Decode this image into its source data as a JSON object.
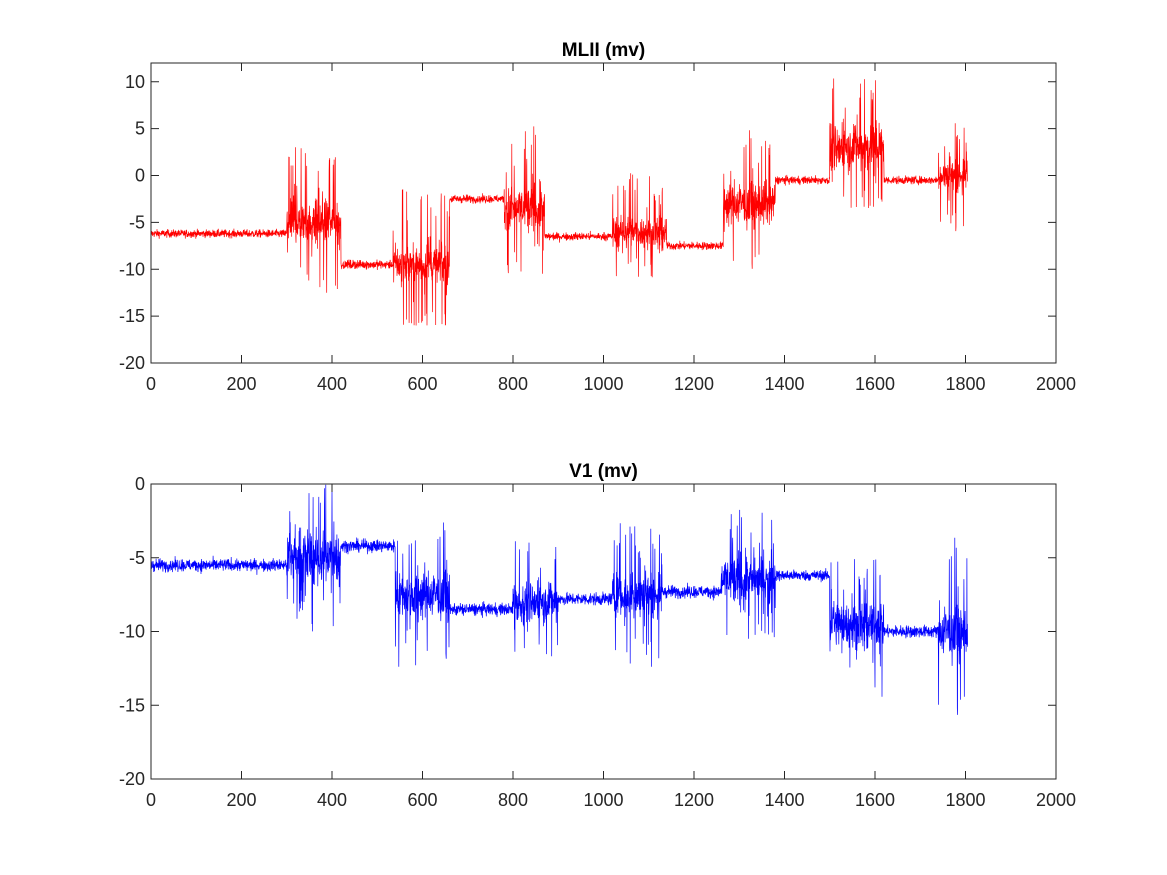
{
  "chart_data": [
    {
      "type": "line",
      "title": "MLII (mv)",
      "xlabel": "",
      "ylabel": "",
      "xlim": [
        0,
        2000
      ],
      "ylim": [
        -20,
        12
      ],
      "xticks": [
        "0",
        "200",
        "400",
        "600",
        "800",
        "1000",
        "1200",
        "1400",
        "1600",
        "1800",
        "2000"
      ],
      "yticks": [
        "-20",
        "-15",
        "-10",
        "-5",
        "0",
        "5",
        "10"
      ],
      "grid": false,
      "color": "#ff0000",
      "series": [
        {
          "segments": [
            {
              "x0": 0,
              "x1": 300,
              "center": -6.2,
              "noise": 0.8,
              "low": -8.0,
              "high": -4.5
            },
            {
              "x0": 300,
              "x1": 420,
              "center": -5.0,
              "noise": 4.0,
              "low": -12.5,
              "high": 4.2
            },
            {
              "x0": 420,
              "x1": 535,
              "center": -9.5,
              "noise": 0.9,
              "low": -11.5,
              "high": -6.5
            },
            {
              "x0": 535,
              "x1": 660,
              "center": -9.5,
              "noise": 3.5,
              "low": -16.0,
              "high": 0.5
            },
            {
              "x0": 660,
              "x1": 780,
              "center": -2.5,
              "noise": 0.8,
              "low": -4.0,
              "high": -1.0
            },
            {
              "x0": 780,
              "x1": 870,
              "center": -3.5,
              "noise": 4.0,
              "low": -10.5,
              "high": 7.0
            },
            {
              "x0": 870,
              "x1": 1020,
              "center": -6.5,
              "noise": 0.8,
              "low": -8.5,
              "high": -5.0
            },
            {
              "x0": 1020,
              "x1": 1140,
              "center": -6.0,
              "noise": 3.0,
              "low": -11.0,
              "high": 1.5
            },
            {
              "x0": 1140,
              "x1": 1265,
              "center": -7.5,
              "noise": 0.8,
              "low": -9.0,
              "high": -5.5
            },
            {
              "x0": 1265,
              "x1": 1380,
              "center": -3.0,
              "noise": 4.0,
              "low": -10.0,
              "high": 6.0
            },
            {
              "x0": 1380,
              "x1": 1500,
              "center": -0.5,
              "noise": 0.8,
              "low": -2.0,
              "high": 1.0
            },
            {
              "x0": 1500,
              "x1": 1620,
              "center": 3.0,
              "noise": 4.5,
              "low": -3.5,
              "high": 12.0
            },
            {
              "x0": 1620,
              "x1": 1740,
              "center": -0.5,
              "noise": 0.8,
              "low": -2.0,
              "high": 1.5
            },
            {
              "x0": 1740,
              "x1": 1805,
              "center": 0.0,
              "noise": 3.0,
              "low": -6.0,
              "high": 6.5
            }
          ]
        }
      ]
    },
    {
      "type": "line",
      "title": "V1 (mv)",
      "xlabel": "",
      "ylabel": "",
      "xlim": [
        0,
        2000
      ],
      "ylim": [
        -20,
        0
      ],
      "xticks": [
        "0",
        "200",
        "400",
        "600",
        "800",
        "1000",
        "1200",
        "1400",
        "1600",
        "1800",
        "2000"
      ],
      "yticks": [
        "-20",
        "-15",
        "-10",
        "-5",
        "0"
      ],
      "grid": false,
      "color": "#0000ff",
      "series": [
        {
          "segments": [
            {
              "x0": 0,
              "x1": 300,
              "center": -5.5,
              "noise": 0.8,
              "low": -7.0,
              "high": -3.5
            },
            {
              "x0": 300,
              "x1": 420,
              "center": -5.0,
              "noise": 3.5,
              "low": -10.5,
              "high": 0.0
            },
            {
              "x0": 420,
              "x1": 540,
              "center": -4.2,
              "noise": 0.8,
              "low": -6.0,
              "high": -0.5
            },
            {
              "x0": 540,
              "x1": 660,
              "center": -7.5,
              "noise": 2.8,
              "low": -12.5,
              "high": -2.5
            },
            {
              "x0": 660,
              "x1": 800,
              "center": -8.5,
              "noise": 0.8,
              "low": -10.5,
              "high": -6.5
            },
            {
              "x0": 800,
              "x1": 900,
              "center": -8.0,
              "noise": 2.5,
              "low": -12.0,
              "high": -3.5
            },
            {
              "x0": 900,
              "x1": 1020,
              "center": -7.8,
              "noise": 0.8,
              "low": -9.5,
              "high": -6.0
            },
            {
              "x0": 1020,
              "x1": 1130,
              "center": -7.5,
              "noise": 2.6,
              "low": -12.5,
              "high": -2.5
            },
            {
              "x0": 1130,
              "x1": 1260,
              "center": -7.3,
              "noise": 0.8,
              "low": -9.0,
              "high": -5.5
            },
            {
              "x0": 1260,
              "x1": 1380,
              "center": -6.5,
              "noise": 2.8,
              "low": -10.5,
              "high": -1.0
            },
            {
              "x0": 1380,
              "x1": 1500,
              "center": -6.2,
              "noise": 0.7,
              "low": -7.5,
              "high": -4.5
            },
            {
              "x0": 1500,
              "x1": 1620,
              "center": -9.5,
              "noise": 2.8,
              "low": -15.0,
              "high": -5.0
            },
            {
              "x0": 1620,
              "x1": 1740,
              "center": -10.0,
              "noise": 0.8,
              "low": -11.5,
              "high": -8.0
            },
            {
              "x0": 1740,
              "x1": 1805,
              "center": -10.0,
              "noise": 3.0,
              "low": -16.5,
              "high": -3.5
            }
          ]
        }
      ]
    }
  ]
}
